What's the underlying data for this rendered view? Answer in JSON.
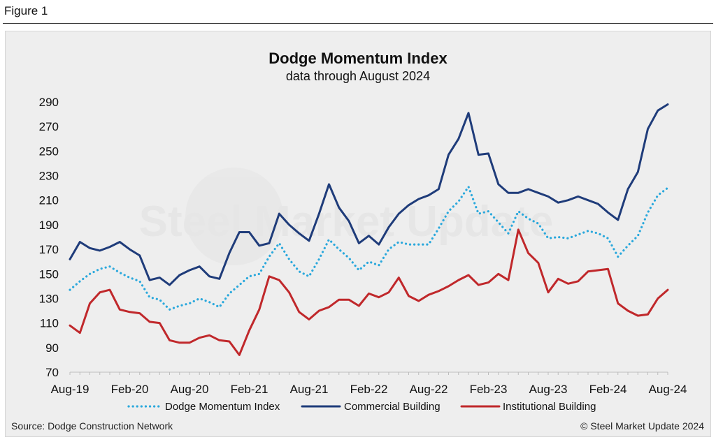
{
  "figure_label": "Figure 1",
  "source": "Source: Dodge Construction Network",
  "copyright": "© Steel Market Update 2024",
  "watermark": "Steel Market Update",
  "colors": {
    "dmi": "#2aa8dc",
    "commercial": "#1f3c7a",
    "institutional": "#c0282b",
    "axis": "#bdbdbd",
    "panel": "#eeeeee"
  },
  "chart_data": {
    "type": "line",
    "title": "Dodge Momentum Index",
    "subtitle": "data through August 2024",
    "xlabel": "",
    "ylabel": "",
    "ylim": [
      70,
      290
    ],
    "yticks": [
      70,
      90,
      110,
      130,
      150,
      170,
      190,
      210,
      230,
      250,
      270,
      290
    ],
    "grid": false,
    "legend_position": "bottom",
    "x_tick_labels": [
      "Aug-19",
      "Feb-20",
      "Aug-20",
      "Feb-21",
      "Aug-21",
      "Feb-22",
      "Aug-22",
      "Feb-23",
      "Aug-23",
      "Feb-24",
      "Aug-24"
    ],
    "x_tick_every": 6,
    "n_points": 61,
    "series": [
      {
        "name": "Dodge Momentum Index",
        "style": "dotted",
        "color": "#2aa8dc",
        "values": [
          137,
          144,
          150,
          154,
          156,
          151,
          147,
          144,
          131,
          129,
          121,
          124,
          126,
          130,
          127,
          123,
          134,
          141,
          148,
          150,
          164,
          175,
          162,
          152,
          148,
          162,
          178,
          170,
          163,
          153,
          160,
          157,
          170,
          176,
          174,
          174,
          174,
          187,
          201,
          209,
          221,
          199,
          201,
          192,
          183,
          201,
          195,
          191,
          179,
          180,
          179,
          182,
          185,
          183,
          179,
          164,
          173,
          181,
          200,
          214,
          220
        ]
      },
      {
        "name": "Commercial Building",
        "style": "solid",
        "color": "#1f3c7a",
        "values": [
          162,
          176,
          171,
          169,
          172,
          176,
          170,
          165,
          145,
          147,
          141,
          149,
          153,
          156,
          148,
          146,
          167,
          184,
          184,
          173,
          175,
          199,
          190,
          183,
          177,
          199,
          223,
          204,
          193,
          175,
          181,
          174,
          188,
          199,
          206,
          211,
          214,
          219,
          247,
          260,
          281,
          247,
          248,
          223,
          216,
          216,
          219,
          216,
          213,
          208,
          210,
          213,
          210,
          207,
          200,
          194,
          219,
          233,
          268,
          283,
          288
        ]
      },
      {
        "name": "Institutional Building",
        "style": "solid",
        "color": "#c0282b",
        "values": [
          108,
          102,
          126,
          135,
          137,
          121,
          119,
          118,
          111,
          110,
          96,
          94,
          94,
          98,
          100,
          96,
          95,
          84,
          104,
          121,
          148,
          145,
          135,
          119,
          113,
          120,
          123,
          129,
          129,
          124,
          134,
          131,
          135,
          147,
          132,
          128,
          133,
          136,
          140,
          145,
          149,
          141,
          143,
          150,
          145,
          186,
          167,
          159,
          135,
          146,
          142,
          144,
          152,
          153,
          154,
          126,
          120,
          116,
          117,
          130,
          137
        ]
      }
    ]
  }
}
